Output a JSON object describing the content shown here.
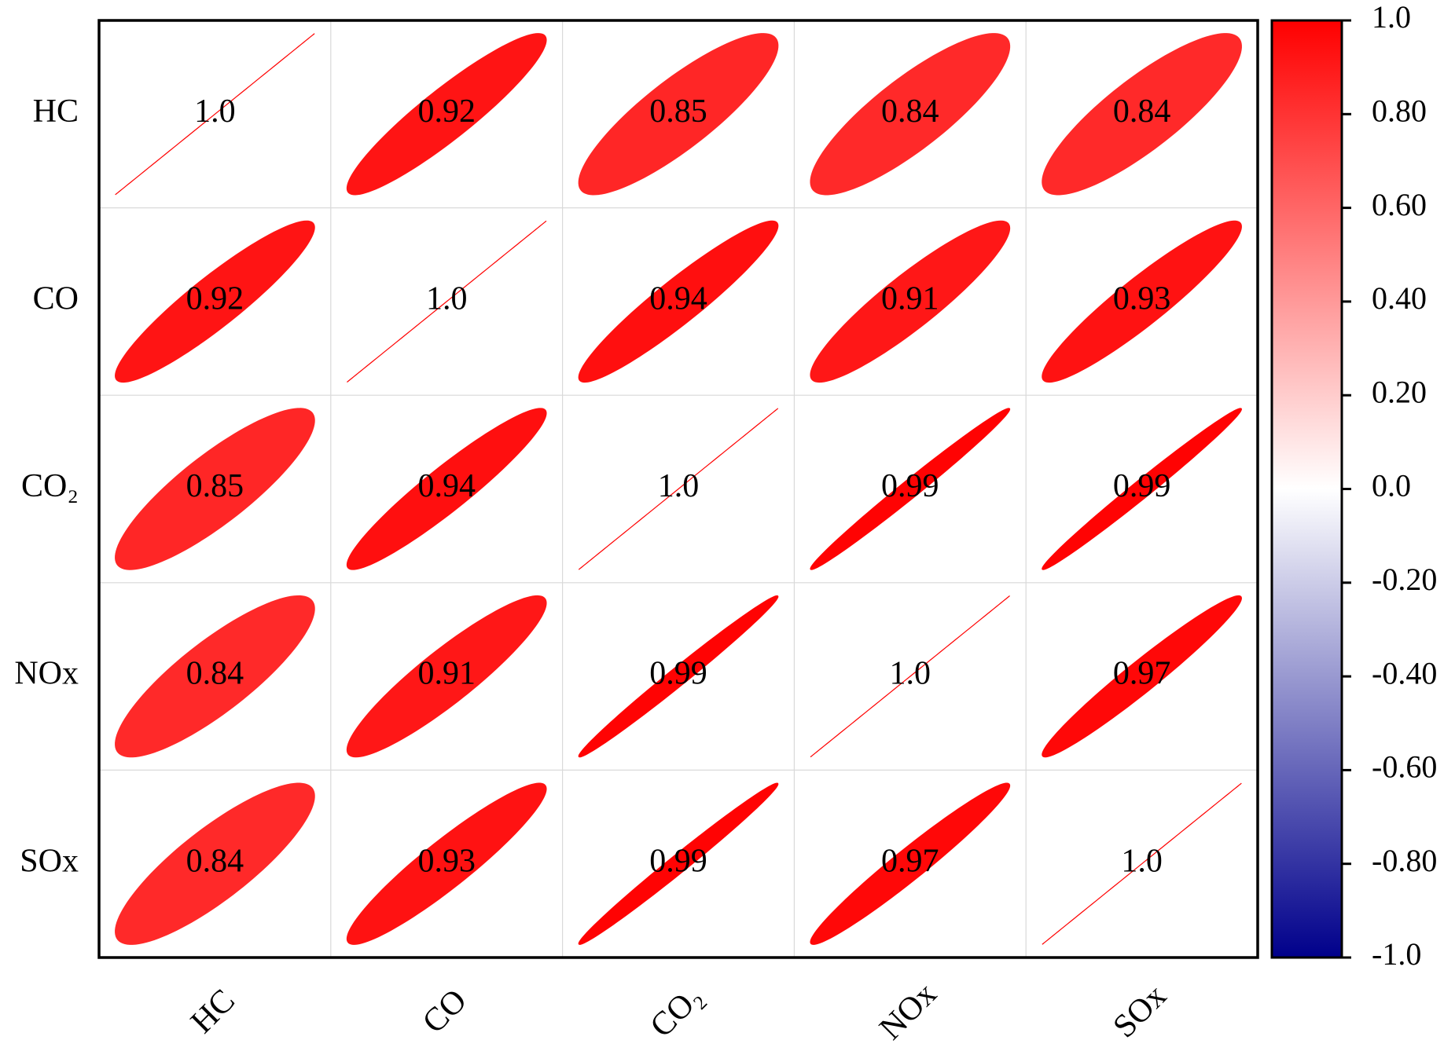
{
  "chart_data": {
    "type": "correlation",
    "labels": [
      "HC",
      "CO",
      "CO₂",
      "NOx",
      "SOx"
    ],
    "values": [
      [
        1,
        0.92,
        0.85,
        0.84,
        0.84
      ],
      [
        0.92,
        1,
        0.94,
        0.91,
        0.93
      ],
      [
        0.85,
        0.94,
        1,
        0.99,
        0.99
      ],
      [
        0.84,
        0.91,
        0.99,
        1,
        0.97
      ],
      [
        0.84,
        0.93,
        0.99,
        0.97,
        1
      ]
    ],
    "value_labels": [
      [
        "1.0",
        "0.92",
        "0.85",
        "0.84",
        "0.84"
      ],
      [
        "0.92",
        "1.0",
        "0.94",
        "0.91",
        "0.93"
      ],
      [
        "0.85",
        "0.94",
        "1.0",
        "0.99",
        "0.99"
      ],
      [
        "0.84",
        "0.91",
        "0.99",
        "1.0",
        "0.97"
      ],
      [
        "0.84",
        "0.93",
        "0.99",
        "0.97",
        "1.0"
      ]
    ],
    "clim": [
      -1,
      1
    ],
    "colormap": [
      "#00008b",
      "#ffffff",
      "#ff0000"
    ],
    "cticks": [
      {
        "value": 1,
        "label": "1.0"
      },
      {
        "value": 0.8,
        "label": "0.80"
      },
      {
        "value": 0.6,
        "label": "0.60"
      },
      {
        "value": 0.4,
        "label": "0.40"
      },
      {
        "value": 0.2,
        "label": "0.20"
      },
      {
        "value": 0,
        "label": "0.0"
      },
      {
        "value": -0.2,
        "label": "-0.20"
      },
      {
        "value": -0.4,
        "label": "-0.40"
      },
      {
        "value": -0.6,
        "label": "-0.60"
      },
      {
        "value": -0.8,
        "label": "-0.80"
      },
      {
        "value": -1,
        "label": "-1.0"
      }
    ],
    "grid": true
  }
}
